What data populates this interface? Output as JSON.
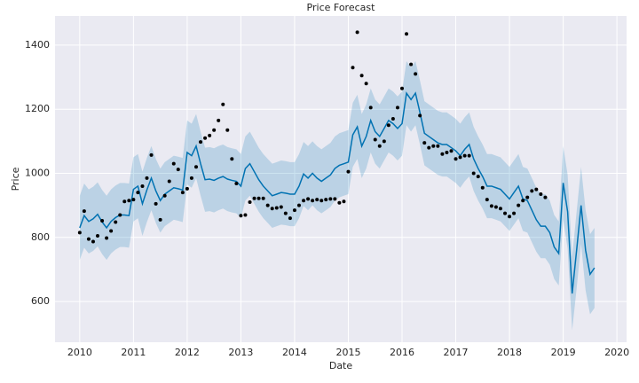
{
  "chart_data": {
    "type": "line",
    "title": "Price Forecast",
    "xlabel": "Date",
    "ylabel": "Price",
    "xlim": [
      2009.54,
      2020.18
    ],
    "xticks": [
      2010,
      2011,
      2012,
      2013,
      2014,
      2015,
      2016,
      2017,
      2018,
      2019,
      2020
    ],
    "ylim": [
      473,
      1491
    ],
    "yticks": [
      600,
      800,
      1000,
      1200,
      1400
    ],
    "grid": true,
    "series": [
      {
        "type": "scatter",
        "color": "#000000",
        "x": [
          2010,
          2010.083,
          2010.167,
          2010.25,
          2010.333,
          2010.417,
          2010.5,
          2010.583,
          2010.667,
          2010.75,
          2010.833,
          2010.917,
          2011,
          2011.083,
          2011.167,
          2011.25,
          2011.333,
          2011.417,
          2011.5,
          2011.583,
          2011.667,
          2011.75,
          2011.833,
          2011.917,
          2012,
          2012.083,
          2012.167,
          2012.25,
          2012.333,
          2012.417,
          2012.5,
          2012.583,
          2012.667,
          2012.75,
          2012.833,
          2012.917,
          2013,
          2013.083,
          2013.167,
          2013.25,
          2013.333,
          2013.417,
          2013.5,
          2013.583,
          2013.667,
          2013.75,
          2013.833,
          2013.917,
          2014,
          2014.083,
          2014.167,
          2014.25,
          2014.333,
          2014.417,
          2014.5,
          2014.583,
          2014.667,
          2014.75,
          2014.833,
          2014.917,
          2015,
          2015.083,
          2015.167,
          2015.25,
          2015.333,
          2015.417,
          2015.5,
          2015.583,
          2015.667,
          2015.75,
          2015.833,
          2015.917,
          2016,
          2016.083,
          2016.167,
          2016.25,
          2016.333,
          2016.417,
          2016.5,
          2016.583,
          2016.667,
          2016.75,
          2016.833,
          2016.917,
          2017,
          2017.083,
          2017.167,
          2017.25,
          2017.333,
          2017.417,
          2017.5,
          2017.583,
          2017.667,
          2017.75,
          2017.833,
          2017.917,
          2018,
          2018.083,
          2018.167,
          2018.25,
          2018.333,
          2018.417,
          2018.5,
          2018.583,
          2018.667
        ],
        "values": [
          815,
          882,
          795,
          787,
          805,
          852,
          798,
          820,
          848,
          870,
          912,
          915,
          918,
          940,
          960,
          985,
          1057,
          905,
          855,
          930,
          975,
          1030,
          1012,
          940,
          952,
          985,
          1020,
          1098,
          1110,
          1118,
          1135,
          1165,
          1215,
          1135,
          1045,
          968,
          868,
          870,
          910,
          922,
          922,
          922,
          900,
          890,
          892,
          895,
          875,
          860,
          885,
          900,
          915,
          920,
          915,
          918,
          915,
          918,
          920,
          920,
          908,
          912,
          1005,
          1330,
          1440,
          1305,
          1280,
          1205,
          1105,
          1085,
          1100,
          1150,
          1170,
          1205,
          1265,
          1435,
          1340,
          1310,
          1180,
          1095,
          1080,
          1085,
          1085,
          1060,
          1065,
          1070,
          1045,
          1050,
          1055,
          1055,
          1000,
          990,
          955,
          918,
          898,
          895,
          890,
          875,
          865,
          875,
          900,
          915,
          925,
          945,
          950,
          935,
          925
        ]
      },
      {
        "type": "line",
        "color": "#0072b2",
        "band_color": "#0072b2",
        "x": [
          2010,
          2010.083,
          2010.167,
          2010.25,
          2010.333,
          2010.417,
          2010.5,
          2010.583,
          2010.667,
          2010.75,
          2010.833,
          2010.917,
          2011,
          2011.083,
          2011.167,
          2011.25,
          2011.333,
          2011.417,
          2011.5,
          2011.583,
          2011.667,
          2011.75,
          2011.833,
          2011.917,
          2012,
          2012.083,
          2012.167,
          2012.25,
          2012.333,
          2012.417,
          2012.5,
          2012.583,
          2012.667,
          2012.75,
          2012.833,
          2012.917,
          2013,
          2013.083,
          2013.167,
          2013.25,
          2013.333,
          2013.417,
          2013.5,
          2013.583,
          2013.667,
          2013.75,
          2013.833,
          2013.917,
          2014,
          2014.083,
          2014.167,
          2014.25,
          2014.333,
          2014.417,
          2014.5,
          2014.583,
          2014.667,
          2014.75,
          2014.833,
          2014.917,
          2015,
          2015.083,
          2015.167,
          2015.25,
          2015.333,
          2015.417,
          2015.5,
          2015.583,
          2015.667,
          2015.75,
          2015.833,
          2015.917,
          2016,
          2016.083,
          2016.167,
          2016.25,
          2016.333,
          2016.417,
          2016.5,
          2016.583,
          2016.667,
          2016.75,
          2016.833,
          2016.917,
          2017,
          2017.083,
          2017.167,
          2017.25,
          2017.333,
          2017.417,
          2017.5,
          2017.583,
          2017.667,
          2017.75,
          2017.833,
          2017.917,
          2018,
          2018.083,
          2018.167,
          2018.25,
          2018.333,
          2018.417,
          2018.5,
          2018.583,
          2018.667,
          2018.75,
          2018.833,
          2018.917,
          2019,
          2019.083,
          2019.167,
          2019.25,
          2019.333,
          2019.417,
          2019.5,
          2019.583
        ],
        "values": [
          830,
          868,
          850,
          858,
          872,
          848,
          830,
          850,
          862,
          870,
          870,
          868,
          950,
          960,
          905,
          948,
          985,
          945,
          915,
          935,
          945,
          955,
          952,
          948,
          1065,
          1055,
          1085,
          1030,
          980,
          982,
          978,
          985,
          990,
          982,
          978,
          975,
          960,
          1015,
          1030,
          1005,
          980,
          960,
          945,
          930,
          935,
          940,
          938,
          935,
          935,
          960,
          998,
          985,
          1000,
          985,
          975,
          985,
          995,
          1015,
          1025,
          1030,
          1035,
          1120,
          1145,
          1085,
          1115,
          1165,
          1130,
          1115,
          1140,
          1165,
          1155,
          1140,
          1155,
          1250,
          1230,
          1250,
          1190,
          1125,
          1115,
          1105,
          1095,
          1090,
          1090,
          1080,
          1070,
          1055,
          1075,
          1090,
          1045,
          1015,
          990,
          960,
          960,
          955,
          950,
          935,
          920,
          940,
          960,
          920,
          915,
          885,
          855,
          835,
          835,
          815,
          770,
          750,
          970,
          880,
          625,
          760,
          900,
          760,
          685,
          705
        ],
        "upper": [
          930,
          968,
          950,
          958,
          972,
          948,
          930,
          950,
          962,
          970,
          970,
          968,
          1050,
          1060,
          1005,
          1048,
          1085,
          1045,
          1015,
          1035,
          1045,
          1055,
          1052,
          1048,
          1165,
          1155,
          1185,
          1130,
          1080,
          1082,
          1078,
          1085,
          1090,
          1082,
          1078,
          1075,
          1060,
          1115,
          1130,
          1105,
          1080,
          1060,
          1045,
          1030,
          1035,
          1040,
          1038,
          1035,
          1035,
          1060,
          1098,
          1085,
          1100,
          1085,
          1075,
          1085,
          1095,
          1115,
          1125,
          1130,
          1135,
          1220,
          1245,
          1185,
          1215,
          1265,
          1230,
          1215,
          1240,
          1265,
          1255,
          1240,
          1255,
          1350,
          1330,
          1350,
          1290,
          1225,
          1215,
          1205,
          1195,
          1190,
          1190,
          1180,
          1170,
          1155,
          1175,
          1190,
          1145,
          1115,
          1090,
          1060,
          1060,
          1055,
          1050,
          1035,
          1020,
          1040,
          1060,
          1020,
          1015,
          985,
          955,
          935,
          935,
          915,
          870,
          850,
          1085,
          995,
          740,
          880,
          1020,
          885,
          810,
          830
        ],
        "lower": [
          730,
          768,
          750,
          758,
          772,
          748,
          730,
          750,
          762,
          770,
          770,
          768,
          850,
          860,
          805,
          848,
          885,
          845,
          815,
          835,
          845,
          855,
          852,
          848,
          965,
          955,
          985,
          930,
          880,
          882,
          878,
          885,
          890,
          882,
          878,
          875,
          860,
          915,
          930,
          905,
          880,
          860,
          845,
          830,
          835,
          840,
          838,
          835,
          835,
          860,
          898,
          885,
          900,
          885,
          875,
          885,
          895,
          915,
          925,
          930,
          935,
          1020,
          1045,
          985,
          1015,
          1065,
          1030,
          1015,
          1040,
          1065,
          1055,
          1040,
          1055,
          1150,
          1130,
          1150,
          1090,
          1025,
          1015,
          1005,
          995,
          990,
          990,
          980,
          970,
          955,
          975,
          990,
          945,
          915,
          890,
          860,
          860,
          855,
          850,
          835,
          820,
          840,
          860,
          820,
          815,
          785,
          755,
          735,
          735,
          715,
          670,
          650,
          855,
          765,
          510,
          640,
          780,
          635,
          560,
          580
        ]
      }
    ]
  }
}
